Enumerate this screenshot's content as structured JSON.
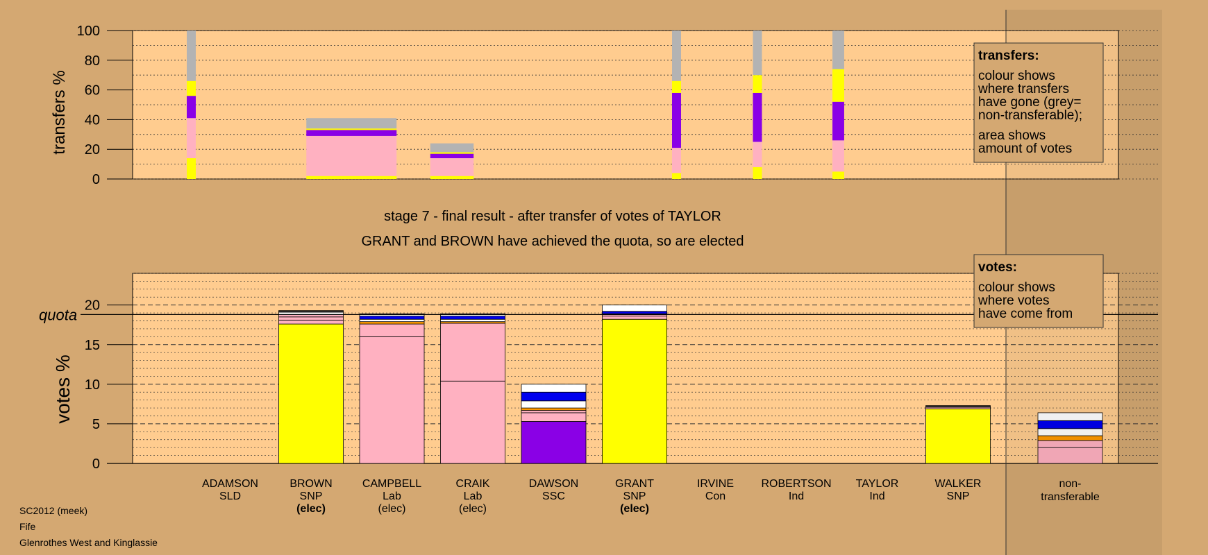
{
  "colors": {
    "page_bg": "#d4a872",
    "plot_bg": "#ffcc8f",
    "legend_bg": "#d4a872",
    "yellow": "#ffff00",
    "pink": "#ffb1c1",
    "purple": "#8a00e6",
    "grey": "#b3b3b3",
    "blue": "#0000ee",
    "white": "#ffffff",
    "orange": "#ff9900",
    "dark": "#333333"
  },
  "titles": {
    "stage": "stage 7 - final result - after transfer of votes of TAYLOR",
    "elected": "GRANT and BROWN have achieved the quota, so are elected"
  },
  "footer": {
    "source": "SC2012 (meek)",
    "council": "Fife",
    "ward": "Glenrothes West and Kinglassie"
  },
  "legend_transfers": {
    "title": "transfers:",
    "lines1": [
      "colour shows",
      "where transfers",
      "have gone (grey=",
      "non-transferable);"
    ],
    "lines2": [
      "area shows",
      "amount of votes"
    ]
  },
  "legend_votes": {
    "title": "votes:",
    "lines": [
      "colour shows",
      "where votes",
      "have come from"
    ]
  },
  "quota_label": "quota",
  "chart_data": [
    {
      "type": "bar",
      "title": "transfers",
      "ylabel": "transfers %",
      "ylim": [
        0,
        100
      ],
      "yticks": [
        0,
        20,
        40,
        60,
        80,
        100
      ],
      "stack_order": [
        "yellow",
        "pink",
        "purple",
        "yellow",
        "grey"
      ],
      "bars": [
        {
          "candidate": "ADAMSON",
          "width_share": 0.1,
          "segments": [
            14,
            27,
            15,
            10,
            34
          ]
        },
        {
          "candidate": "CAMPBELL",
          "width_share": 1.0,
          "segments": [
            2,
            27,
            4,
            1,
            7
          ]
        },
        {
          "candidate": "CRAIK",
          "width_share": 0.48,
          "segments": [
            2,
            12,
            3,
            1,
            6
          ]
        },
        {
          "candidate": "IRVINE",
          "width_share": 0.1,
          "segments": [
            4,
            17,
            37,
            8,
            34
          ]
        },
        {
          "candidate": "ROBERTSON",
          "width_share": 0.1,
          "segments": [
            8,
            17,
            33,
            12,
            30
          ]
        },
        {
          "candidate": "TAYLOR",
          "width_share": 0.13,
          "segments": [
            5,
            21,
            26,
            22,
            26
          ]
        }
      ]
    },
    {
      "type": "bar",
      "title": "votes",
      "ylabel": "votes %",
      "ylim": [
        0,
        24
      ],
      "yticks": [
        0,
        5,
        10,
        15,
        20
      ],
      "quota": 18.8,
      "categories": [
        {
          "name": "ADAMSON",
          "party": "SLD",
          "status": ""
        },
        {
          "name": "BROWN",
          "party": "SNP",
          "status": "(elec)"
        },
        {
          "name": "CAMPBELL",
          "party": "Lab",
          "status": "(elec)"
        },
        {
          "name": "CRAIK",
          "party": "Lab",
          "status": "(elec)"
        },
        {
          "name": "DAWSON",
          "party": "SSC",
          "status": ""
        },
        {
          "name": "GRANT",
          "party": "SNP",
          "status": "(elec)"
        },
        {
          "name": "IRVINE",
          "party": "Con",
          "status": ""
        },
        {
          "name": "ROBERTSON",
          "party": "Ind",
          "status": ""
        },
        {
          "name": "TAYLOR",
          "party": "Ind",
          "status": ""
        },
        {
          "name": "WALKER",
          "party": "SNP",
          "status": ""
        },
        {
          "name": "non-\ntransferable",
          "party": "",
          "status": ""
        }
      ],
      "stacks": [
        [],
        [
          {
            "c": "yellow",
            "v": 17.6
          },
          {
            "c": "pink",
            "v": 0.5
          },
          {
            "c": "pink",
            "v": 0.4
          },
          {
            "c": "pink",
            "v": 0.3
          },
          {
            "c": "white",
            "v": 0.3
          },
          {
            "c": "dark",
            "v": 0.2
          }
        ],
        [
          {
            "c": "pink",
            "v": 16.0
          },
          {
            "c": "pink",
            "v": 1.6
          },
          {
            "c": "orange",
            "v": 0.3
          },
          {
            "c": "white",
            "v": 0.3
          },
          {
            "c": "blue",
            "v": 0.4
          },
          {
            "c": "white",
            "v": 0.3
          }
        ],
        [
          {
            "c": "pink",
            "v": 10.4
          },
          {
            "c": "pink",
            "v": 7.3
          },
          {
            "c": "orange",
            "v": 0.2
          },
          {
            "c": "white",
            "v": 0.3
          },
          {
            "c": "blue",
            "v": 0.4
          },
          {
            "c": "white",
            "v": 0.3
          }
        ],
        [
          {
            "c": "purple",
            "v": 5.3
          },
          {
            "c": "pink",
            "v": 1.1
          },
          {
            "c": "pink",
            "v": 0.3
          },
          {
            "c": "orange",
            "v": 0.3
          },
          {
            "c": "white",
            "v": 0.9
          },
          {
            "c": "blue",
            "v": 1.1
          },
          {
            "c": "white",
            "v": 1.0
          }
        ],
        [
          {
            "c": "yellow",
            "v": 18.2
          },
          {
            "c": "pink",
            "v": 0.4
          },
          {
            "c": "pink",
            "v": 0.3
          },
          {
            "c": "blue",
            "v": 0.3
          },
          {
            "c": "white",
            "v": 0.8
          }
        ],
        [],
        [],
        [],
        [
          {
            "c": "yellow",
            "v": 6.9
          },
          {
            "c": "pink",
            "v": 0.2
          },
          {
            "c": "dark",
            "v": 0.2
          }
        ],
        [
          {
            "c": "pink",
            "v": 2.0
          },
          {
            "c": "pink",
            "v": 0.9
          },
          {
            "c": "orange",
            "v": 0.6
          },
          {
            "c": "white",
            "v": 0.9
          },
          {
            "c": "blue",
            "v": 1.0
          },
          {
            "c": "white",
            "v": 1.0
          }
        ]
      ]
    }
  ]
}
